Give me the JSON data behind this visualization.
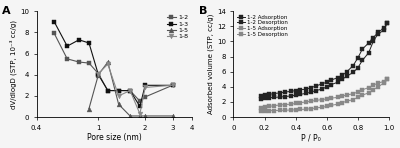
{
  "panel_A": {
    "title": "A",
    "xlabel": "Pore size (nm)",
    "ylabel": "dV/dlogD (STP, 10⁻³ cc/g)",
    "xlim": [
      0.4,
      4.0
    ],
    "ylim": [
      0,
      10
    ],
    "xticks": [
      0.4,
      1.0,
      2.0,
      3.0,
      4.0
    ],
    "xticklabels": [
      "0.4",
      "1",
      "2",
      "3",
      "4"
    ],
    "yticks": [
      0,
      2,
      4,
      6,
      8,
      10
    ],
    "series": {
      "1-2": {
        "x": [
          0.52,
          0.63,
          0.75,
          0.87,
          1.0,
          1.15,
          1.35,
          1.6,
          1.85,
          2.0,
          3.0
        ],
        "y": [
          7.9,
          5.5,
          5.2,
          5.1,
          4.1,
          2.5,
          2.5,
          2.5,
          1.5,
          1.9,
          3.0
        ],
        "marker": "s",
        "color": "#555555",
        "markersize": 3.0,
        "linewidth": 0.8
      },
      "1-3": {
        "x": [
          0.52,
          0.63,
          0.75,
          0.87,
          1.0,
          1.15,
          1.35,
          1.6,
          1.85,
          2.0,
          3.0
        ],
        "y": [
          9.0,
          6.7,
          7.3,
          7.0,
          4.0,
          2.5,
          2.5,
          2.5,
          1.0,
          3.0,
          3.0
        ],
        "marker": "s",
        "color": "#111111",
        "markersize": 3.0,
        "linewidth": 0.8
      },
      "1-5": {
        "x": [
          0.87,
          1.0,
          1.15,
          1.35,
          1.6,
          1.85,
          2.0,
          3.0
        ],
        "y": [
          0.8,
          4.0,
          5.2,
          1.2,
          0.1,
          0.1,
          0.1,
          0.1
        ],
        "marker": "^",
        "color": "#555555",
        "markersize": 3.5,
        "linewidth": 0.8
      },
      "1-8": {
        "x": [
          1.0,
          1.15,
          1.35,
          1.6,
          1.85,
          2.0,
          3.0
        ],
        "y": [
          4.1,
          5.0,
          2.0,
          2.5,
          0.3,
          2.8,
          3.0
        ],
        "marker": "v",
        "color": "#888888",
        "markersize": 3.5,
        "linewidth": 0.8
      }
    }
  },
  "panel_B": {
    "title": "B",
    "xlabel": "P / P₀",
    "ylabel": "Adsorbed volume (STP, cc/g)",
    "xlim": [
      0.0,
      1.0
    ],
    "ylim": [
      0,
      14
    ],
    "xticks": [
      0.0,
      0.2,
      0.4,
      0.6,
      0.8,
      1.0
    ],
    "xticklabels": [
      "0",
      "0.2",
      "0.4",
      "0.6",
      "0.8",
      "1.0"
    ],
    "yticks": [
      0,
      2,
      4,
      6,
      8,
      10,
      12,
      14
    ],
    "series": {
      "1-2 Adsorption": {
        "x": [
          0.18,
          0.2,
          0.23,
          0.26,
          0.3,
          0.33,
          0.37,
          0.4,
          0.43,
          0.47,
          0.5,
          0.53,
          0.57,
          0.6,
          0.63,
          0.67,
          0.7,
          0.73,
          0.77,
          0.8,
          0.83,
          0.87,
          0.9,
          0.93,
          0.97,
          0.99
        ],
        "y": [
          2.4,
          2.5,
          2.55,
          2.6,
          2.65,
          2.7,
          2.8,
          2.9,
          3.0,
          3.15,
          3.3,
          3.5,
          3.7,
          4.0,
          4.3,
          4.6,
          5.0,
          5.4,
          5.9,
          6.5,
          7.5,
          8.5,
          10.0,
          11.0,
          11.5,
          12.5
        ],
        "marker": "s",
        "color": "#222222",
        "markersize": 2.5,
        "linewidth": 0.7
      },
      "1-2 Desorption": {
        "x": [
          0.99,
          0.97,
          0.93,
          0.9,
          0.87,
          0.83,
          0.8,
          0.77,
          0.73,
          0.7,
          0.67,
          0.63,
          0.6,
          0.57,
          0.53,
          0.5,
          0.47,
          0.43,
          0.4,
          0.37,
          0.33,
          0.3,
          0.26,
          0.23,
          0.2,
          0.18
        ],
        "y": [
          12.5,
          11.8,
          11.2,
          10.5,
          9.8,
          9.0,
          7.8,
          6.8,
          6.0,
          5.5,
          5.2,
          4.9,
          4.6,
          4.4,
          4.1,
          3.9,
          3.7,
          3.6,
          3.5,
          3.4,
          3.3,
          3.2,
          3.1,
          3.0,
          2.9,
          2.8
        ],
        "marker": "s",
        "color": "#222222",
        "markersize": 2.5,
        "linewidth": 0.7
      },
      "1-5 Adsorption": {
        "x": [
          0.18,
          0.2,
          0.23,
          0.26,
          0.3,
          0.33,
          0.37,
          0.4,
          0.43,
          0.47,
          0.5,
          0.53,
          0.57,
          0.6,
          0.63,
          0.67,
          0.7,
          0.73,
          0.77,
          0.8,
          0.83,
          0.87,
          0.9,
          0.93,
          0.97,
          0.99
        ],
        "y": [
          0.8,
          0.82,
          0.84,
          0.86,
          0.88,
          0.9,
          0.93,
          0.95,
          1.0,
          1.05,
          1.1,
          1.2,
          1.3,
          1.4,
          1.55,
          1.7,
          1.9,
          2.1,
          2.3,
          2.6,
          2.9,
          3.2,
          3.6,
          4.0,
          4.5,
          5.0
        ],
        "marker": "s",
        "color": "#888888",
        "markersize": 2.5,
        "linewidth": 0.7
      },
      "1-5 Desorption": {
        "x": [
          0.99,
          0.97,
          0.93,
          0.9,
          0.87,
          0.83,
          0.8,
          0.77,
          0.73,
          0.7,
          0.67,
          0.63,
          0.6,
          0.57,
          0.53,
          0.5,
          0.47,
          0.43,
          0.4,
          0.37,
          0.33,
          0.3,
          0.26,
          0.23,
          0.2,
          0.18
        ],
        "y": [
          5.0,
          4.7,
          4.5,
          4.2,
          3.9,
          3.6,
          3.3,
          3.1,
          2.9,
          2.8,
          2.6,
          2.5,
          2.4,
          2.3,
          2.2,
          2.1,
          2.0,
          1.9,
          1.8,
          1.7,
          1.65,
          1.6,
          1.5,
          1.4,
          1.3,
          1.2
        ],
        "marker": "s",
        "color": "#888888",
        "markersize": 2.5,
        "linewidth": 0.7
      }
    }
  },
  "background_color": "#f5f5f5",
  "figure_width": 4.0,
  "figure_height": 1.48
}
